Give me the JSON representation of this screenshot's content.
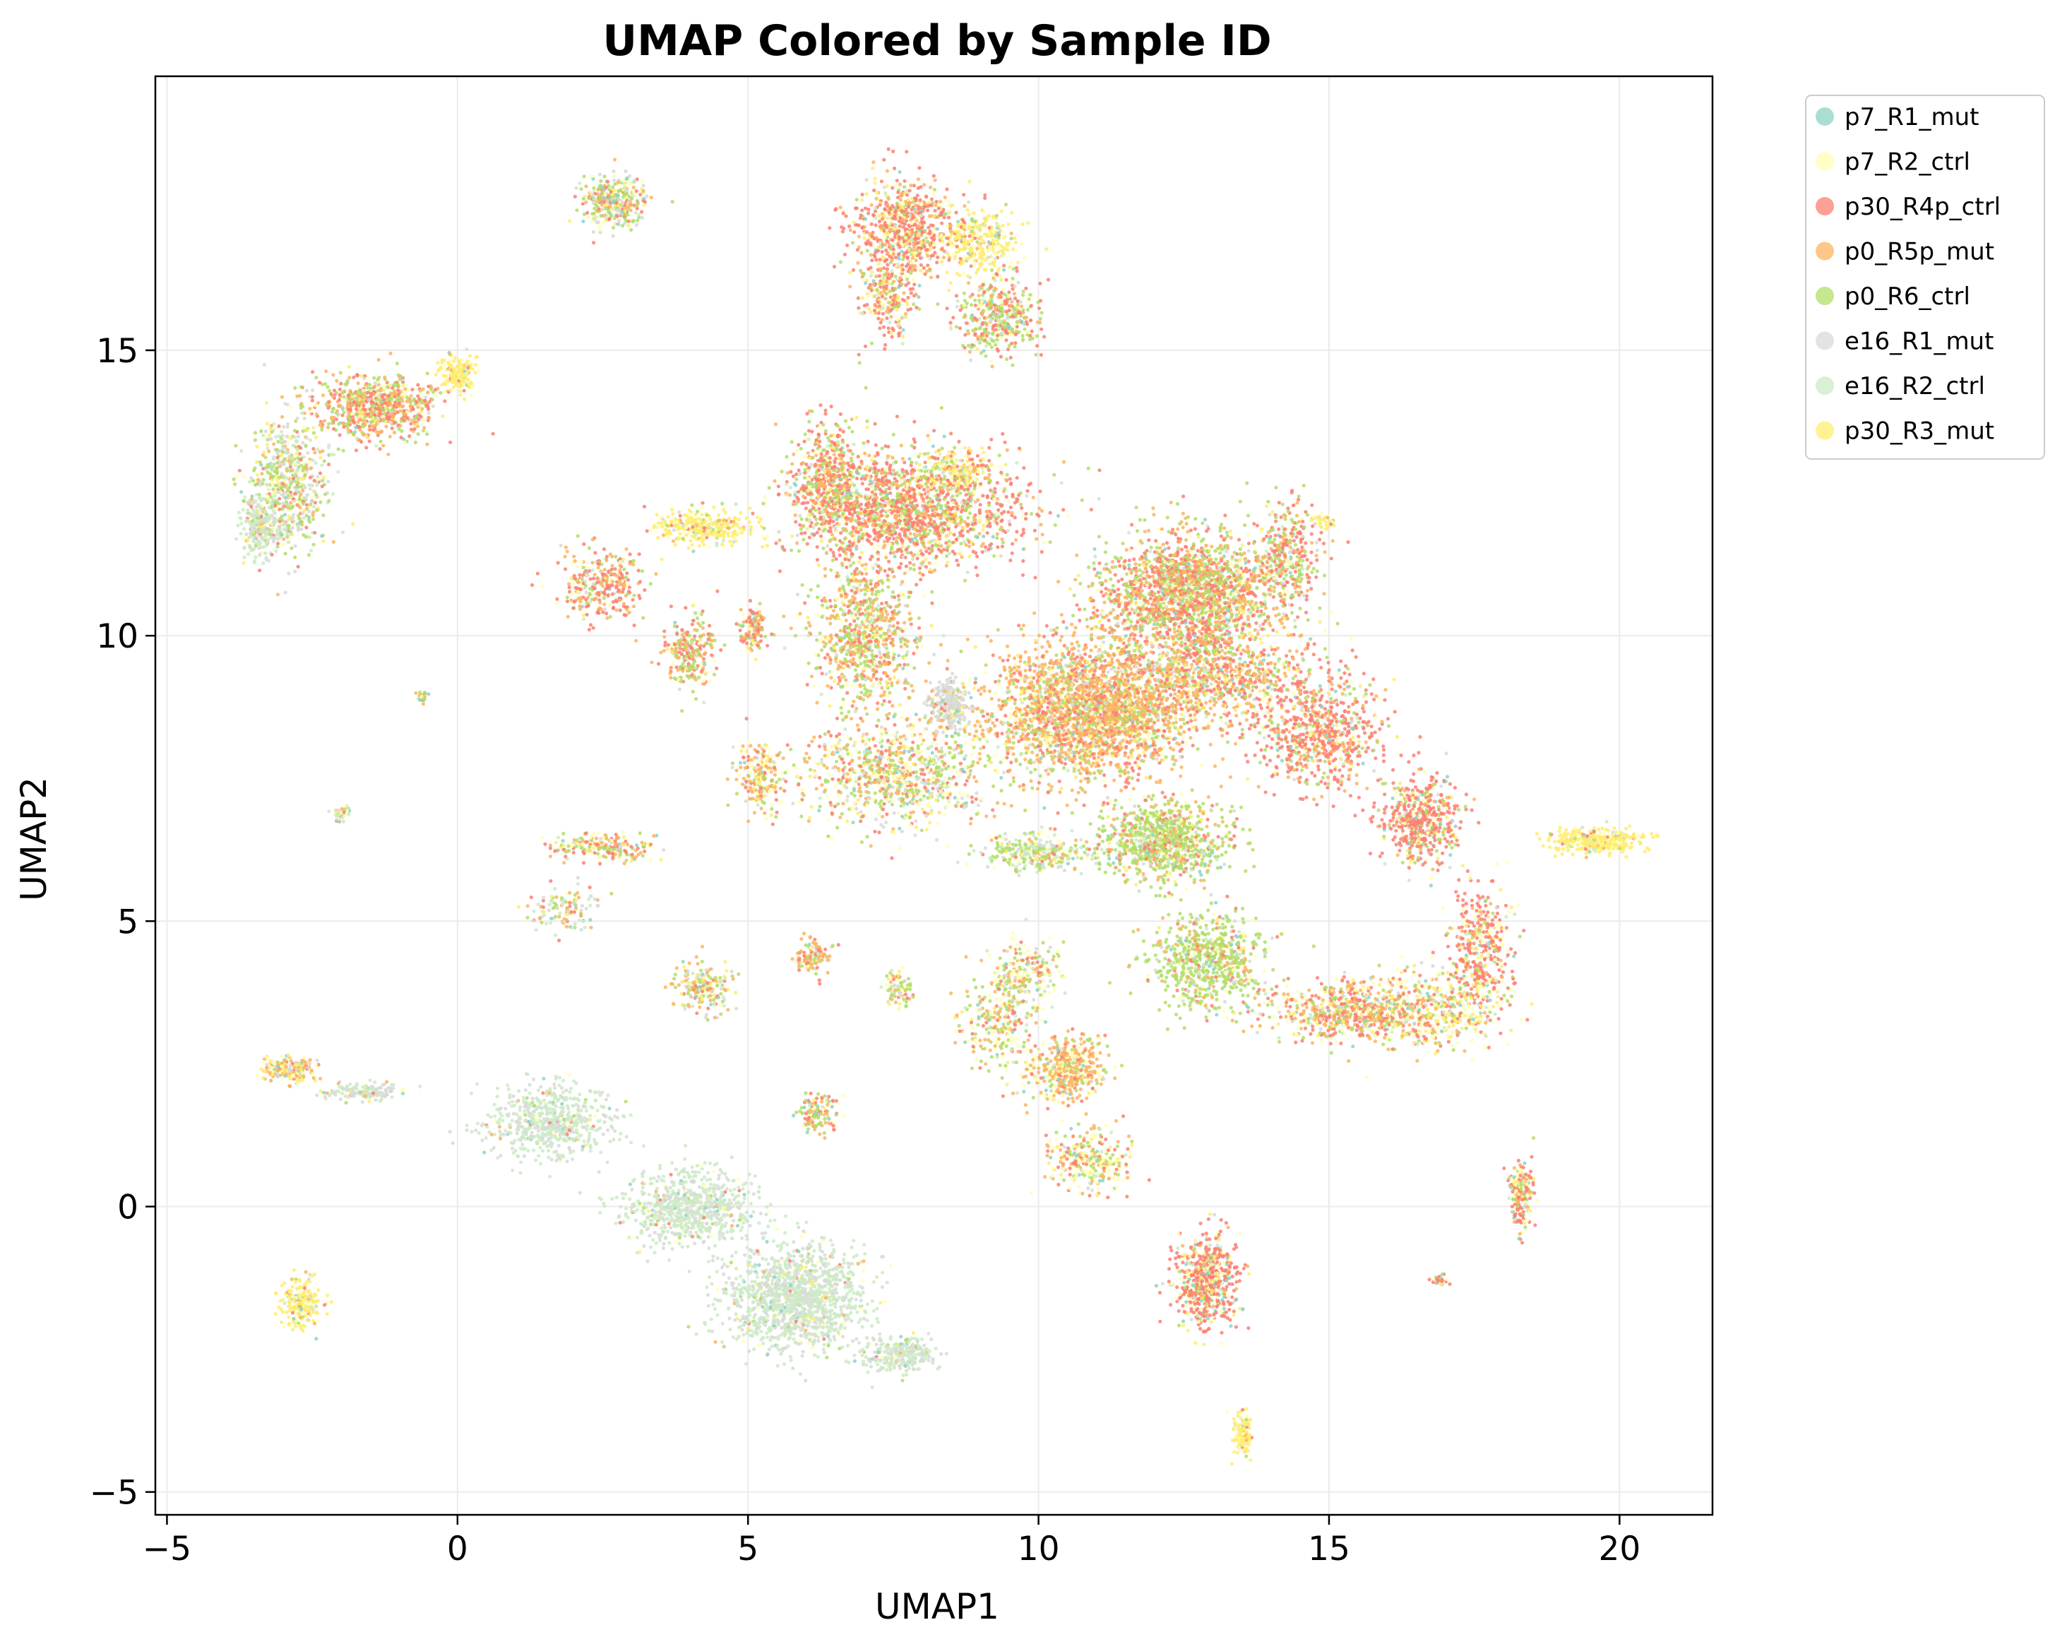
{
  "chart_data": {
    "type": "scatter",
    "title": "UMAP Colored by Sample ID",
    "xlabel": "UMAP1",
    "ylabel": "UMAP2",
    "xlim": [
      -5.2,
      21.6
    ],
    "ylim": [
      -5.4,
      19.8
    ],
    "xticks": [
      {
        "value": -5,
        "label": "−5"
      },
      {
        "value": 0,
        "label": "0"
      },
      {
        "value": 5,
        "label": "5"
      },
      {
        "value": 10,
        "label": "10"
      },
      {
        "value": 15,
        "label": "15"
      },
      {
        "value": 20,
        "label": "20"
      }
    ],
    "yticks": [
      {
        "value": -5,
        "label": "−5"
      },
      {
        "value": 0,
        "label": "0"
      },
      {
        "value": 5,
        "label": "5"
      },
      {
        "value": 10,
        "label": "10"
      },
      {
        "value": 15,
        "label": "15"
      }
    ],
    "grid": true,
    "legend_position": "outside upper right",
    "series": [
      {
        "name": "p7_R1_mut",
        "color": "#8dd3c7"
      },
      {
        "name": "p7_R2_ctrl",
        "color": "#ffffb3"
      },
      {
        "name": "p30_R4p_ctrl",
        "color": "#fb8072"
      },
      {
        "name": "p0_R5p_mut",
        "color": "#fdb462"
      },
      {
        "name": "p0_R6_ctrl",
        "color": "#b3de69"
      },
      {
        "name": "e16_R1_mut",
        "color": "#d9d9d9"
      },
      {
        "name": "e16_R2_ctrl",
        "color": "#ccebc5"
      },
      {
        "name": "p30_R3_mut",
        "color": "#ffed6f"
      }
    ],
    "clusters": [
      {
        "x": 10.9,
        "y": 8.7,
        "sx": 1.6,
        "sy": 1.1,
        "n": 2600,
        "w": [
          2,
          5,
          20,
          45,
          15,
          4,
          2,
          7
        ]
      },
      {
        "x": 12.6,
        "y": 10.8,
        "sx": 1.4,
        "sy": 0.9,
        "n": 1800,
        "w": [
          3,
          4,
          30,
          25,
          30,
          2,
          2,
          4
        ]
      },
      {
        "x": 14.8,
        "y": 8.3,
        "sx": 1.0,
        "sy": 0.9,
        "n": 700,
        "w": [
          2,
          4,
          55,
          20,
          10,
          2,
          2,
          5
        ]
      },
      {
        "x": 13.0,
        "y": 9.4,
        "sx": 1.5,
        "sy": 0.8,
        "n": 900,
        "w": [
          3,
          5,
          35,
          30,
          15,
          3,
          3,
          6
        ]
      },
      {
        "x": 7.8,
        "y": 12.2,
        "sx": 1.7,
        "sy": 0.9,
        "n": 1600,
        "w": [
          3,
          5,
          45,
          15,
          20,
          3,
          3,
          6
        ]
      },
      {
        "x": 6.4,
        "y": 12.7,
        "sx": 0.6,
        "sy": 0.9,
        "n": 500,
        "w": [
          3,
          5,
          40,
          15,
          25,
          3,
          3,
          6
        ]
      },
      {
        "x": 8.6,
        "y": 12.9,
        "sx": 0.6,
        "sy": 0.3,
        "n": 180,
        "w": [
          2,
          10,
          10,
          8,
          10,
          2,
          2,
          56
        ]
      },
      {
        "x": 7.0,
        "y": 10.0,
        "sx": 0.8,
        "sy": 1.1,
        "n": 800,
        "w": [
          3,
          8,
          20,
          30,
          28,
          3,
          3,
          5
        ]
      },
      {
        "x": 7.6,
        "y": 7.6,
        "sx": 1.4,
        "sy": 0.8,
        "n": 900,
        "w": [
          4,
          20,
          15,
          20,
          20,
          10,
          6,
          5
        ]
      },
      {
        "x": 8.5,
        "y": 8.8,
        "sx": 0.3,
        "sy": 0.4,
        "n": 260,
        "w": [
          2,
          4,
          3,
          5,
          6,
          70,
          6,
          4
        ]
      },
      {
        "x": 12.2,
        "y": 6.4,
        "sx": 0.9,
        "sy": 0.6,
        "n": 900,
        "w": [
          3,
          6,
          10,
          10,
          60,
          4,
          4,
          3
        ]
      },
      {
        "x": 12.9,
        "y": 4.3,
        "sx": 0.9,
        "sy": 0.8,
        "n": 700,
        "w": [
          3,
          6,
          8,
          8,
          65,
          4,
          4,
          2
        ]
      },
      {
        "x": 15.6,
        "y": 3.4,
        "sx": 1.4,
        "sy": 0.5,
        "n": 800,
        "w": [
          4,
          15,
          30,
          25,
          10,
          4,
          3,
          9
        ]
      },
      {
        "x": 16.6,
        "y": 6.8,
        "sx": 0.6,
        "sy": 0.7,
        "n": 500,
        "w": [
          3,
          6,
          60,
          10,
          10,
          3,
          3,
          5
        ]
      },
      {
        "x": 17.6,
        "y": 4.5,
        "sx": 0.5,
        "sy": 1.1,
        "n": 400,
        "w": [
          4,
          15,
          50,
          8,
          6,
          3,
          3,
          11
        ]
      },
      {
        "x": 19.6,
        "y": 6.4,
        "sx": 0.7,
        "sy": 0.2,
        "n": 320,
        "w": [
          2,
          12,
          3,
          3,
          2,
          2,
          2,
          74
        ]
      },
      {
        "x": 7.7,
        "y": 17.1,
        "sx": 0.8,
        "sy": 0.8,
        "n": 700,
        "w": [
          3,
          6,
          50,
          15,
          8,
          2,
          2,
          14
        ]
      },
      {
        "x": 9.0,
        "y": 16.9,
        "sx": 0.6,
        "sy": 0.5,
        "n": 280,
        "w": [
          2,
          15,
          6,
          5,
          6,
          2,
          2,
          62
        ]
      },
      {
        "x": 9.3,
        "y": 15.6,
        "sx": 0.6,
        "sy": 0.6,
        "n": 400,
        "w": [
          3,
          8,
          25,
          10,
          40,
          4,
          4,
          6
        ]
      },
      {
        "x": 7.4,
        "y": 15.9,
        "sx": 0.4,
        "sy": 0.6,
        "n": 200,
        "w": [
          3,
          6,
          45,
          15,
          10,
          3,
          3,
          15
        ]
      },
      {
        "x": 2.7,
        "y": 17.6,
        "sx": 0.5,
        "sy": 0.4,
        "n": 350,
        "w": [
          6,
          10,
          15,
          10,
          25,
          18,
          6,
          10
        ]
      },
      {
        "x": -1.4,
        "y": 14.0,
        "sx": 0.9,
        "sy": 0.5,
        "n": 700,
        "w": [
          3,
          6,
          35,
          25,
          20,
          3,
          3,
          5
        ]
      },
      {
        "x": -2.9,
        "y": 12.7,
        "sx": 0.6,
        "sy": 1.1,
        "n": 600,
        "w": [
          3,
          8,
          10,
          12,
          25,
          20,
          14,
          8
        ]
      },
      {
        "x": -3.4,
        "y": 11.9,
        "sx": 0.3,
        "sy": 0.5,
        "n": 260,
        "w": [
          3,
          5,
          3,
          3,
          5,
          25,
          53,
          3
        ]
      },
      {
        "x": 0.0,
        "y": 14.6,
        "sx": 0.3,
        "sy": 0.3,
        "n": 150,
        "w": [
          2,
          10,
          5,
          5,
          2,
          2,
          2,
          72
        ]
      },
      {
        "x": 4.2,
        "y": 11.9,
        "sx": 0.8,
        "sy": 0.3,
        "n": 300,
        "w": [
          2,
          10,
          5,
          5,
          4,
          3,
          3,
          68
        ]
      },
      {
        "x": 2.5,
        "y": 10.9,
        "sx": 0.6,
        "sy": 0.6,
        "n": 300,
        "w": [
          3,
          8,
          40,
          25,
          15,
          3,
          3,
          3
        ]
      },
      {
        "x": 4.0,
        "y": 9.7,
        "sx": 0.4,
        "sy": 0.6,
        "n": 250,
        "w": [
          3,
          8,
          30,
          20,
          30,
          3,
          3,
          3
        ]
      },
      {
        "x": 5.1,
        "y": 10.1,
        "sx": 0.2,
        "sy": 0.4,
        "n": 120,
        "w": [
          3,
          8,
          35,
          25,
          20,
          3,
          3,
          3
        ]
      },
      {
        "x": 2.5,
        "y": 6.3,
        "sx": 0.7,
        "sy": 0.2,
        "n": 200,
        "w": [
          3,
          8,
          25,
          20,
          30,
          3,
          3,
          8
        ]
      },
      {
        "x": 1.8,
        "y": 5.2,
        "sx": 0.5,
        "sy": 0.4,
        "n": 120,
        "w": [
          3,
          5,
          10,
          20,
          20,
          10,
          25,
          7
        ]
      },
      {
        "x": 4.2,
        "y": 3.8,
        "sx": 0.5,
        "sy": 0.4,
        "n": 180,
        "w": [
          3,
          8,
          10,
          25,
          20,
          10,
          6,
          18
        ]
      },
      {
        "x": 6.1,
        "y": 4.4,
        "sx": 0.3,
        "sy": 0.3,
        "n": 120,
        "w": [
          3,
          8,
          20,
          40,
          10,
          10,
          6,
          3
        ]
      },
      {
        "x": 7.6,
        "y": 3.8,
        "sx": 0.2,
        "sy": 0.3,
        "n": 80,
        "w": [
          3,
          15,
          10,
          20,
          30,
          10,
          6,
          6
        ]
      },
      {
        "x": 6.2,
        "y": 1.6,
        "sx": 0.3,
        "sy": 0.3,
        "n": 120,
        "w": [
          6,
          8,
          25,
          25,
          25,
          3,
          3,
          5
        ]
      },
      {
        "x": 9.3,
        "y": 3.2,
        "sx": 0.6,
        "sy": 0.8,
        "n": 250,
        "w": [
          4,
          20,
          15,
          25,
          25,
          3,
          3,
          5
        ]
      },
      {
        "x": 10.5,
        "y": 2.4,
        "sx": 0.6,
        "sy": 0.5,
        "n": 450,
        "w": [
          4,
          25,
          10,
          45,
          10,
          2,
          2,
          2
        ]
      },
      {
        "x": 10.9,
        "y": 0.8,
        "sx": 0.6,
        "sy": 0.5,
        "n": 300,
        "w": [
          5,
          30,
          15,
          15,
          20,
          2,
          5,
          8
        ]
      },
      {
        "x": 12.9,
        "y": -1.3,
        "sx": 0.5,
        "sy": 0.7,
        "n": 600,
        "w": [
          5,
          15,
          55,
          5,
          5,
          3,
          3,
          9
        ]
      },
      {
        "x": 13.5,
        "y": -4.0,
        "sx": 0.15,
        "sy": 0.3,
        "n": 140,
        "w": [
          2,
          15,
          3,
          3,
          2,
          2,
          2,
          71
        ]
      },
      {
        "x": 18.3,
        "y": 0.2,
        "sx": 0.2,
        "sy": 0.5,
        "n": 200,
        "w": [
          3,
          20,
          45,
          10,
          10,
          3,
          3,
          6
        ]
      },
      {
        "x": -2.9,
        "y": 2.4,
        "sx": 0.4,
        "sy": 0.2,
        "n": 200,
        "w": [
          3,
          10,
          5,
          35,
          5,
          15,
          7,
          20
        ]
      },
      {
        "x": -1.6,
        "y": 2.0,
        "sx": 0.6,
        "sy": 0.15,
        "n": 150,
        "w": [
          2,
          3,
          2,
          3,
          3,
          45,
          40,
          2
        ]
      },
      {
        "x": -2.7,
        "y": -1.7,
        "sx": 0.3,
        "sy": 0.4,
        "n": 200,
        "w": [
          3,
          10,
          5,
          8,
          5,
          3,
          3,
          63
        ]
      },
      {
        "x": 1.6,
        "y": 1.5,
        "sx": 1.0,
        "sy": 0.6,
        "n": 600,
        "w": [
          2,
          3,
          1,
          1,
          2,
          25,
          64,
          2
        ]
      },
      {
        "x": 4.0,
        "y": 0.0,
        "sx": 1.0,
        "sy": 0.6,
        "n": 700,
        "w": [
          2,
          3,
          1,
          1,
          2,
          25,
          64,
          2
        ]
      },
      {
        "x": 5.8,
        "y": -1.6,
        "sx": 1.1,
        "sy": 0.8,
        "n": 1300,
        "w": [
          2,
          3,
          1,
          1,
          2,
          28,
          61,
          2
        ]
      },
      {
        "x": 7.6,
        "y": -2.6,
        "sx": 0.6,
        "sy": 0.3,
        "n": 250,
        "w": [
          2,
          3,
          1,
          1,
          2,
          30,
          59,
          2
        ]
      },
      {
        "x": -0.6,
        "y": 8.9,
        "sx": 0.08,
        "sy": 0.1,
        "n": 25,
        "w": [
          5,
          10,
          10,
          30,
          40,
          2,
          2,
          1
        ]
      },
      {
        "x": -2.0,
        "y": 6.9,
        "sx": 0.15,
        "sy": 0.15,
        "n": 40,
        "w": [
          10,
          20,
          10,
          10,
          10,
          10,
          20,
          10
        ]
      },
      {
        "x": 16.9,
        "y": -1.3,
        "sx": 0.12,
        "sy": 0.08,
        "n": 30,
        "w": [
          10,
          10,
          60,
          5,
          5,
          2,
          2,
          6
        ]
      },
      {
        "x": 14.9,
        "y": 12.0,
        "sx": 0.2,
        "sy": 0.1,
        "n": 40,
        "w": [
          2,
          20,
          3,
          3,
          3,
          2,
          2,
          65
        ]
      },
      {
        "x": 14.3,
        "y": 11.4,
        "sx": 0.5,
        "sy": 0.9,
        "n": 300,
        "w": [
          3,
          5,
          40,
          15,
          30,
          3,
          2,
          2
        ]
      },
      {
        "x": 9.8,
        "y": 4.1,
        "sx": 0.5,
        "sy": 0.5,
        "n": 200,
        "w": [
          3,
          30,
          10,
          15,
          25,
          10,
          4,
          3
        ]
      },
      {
        "x": 5.2,
        "y": 7.5,
        "sx": 0.4,
        "sy": 0.6,
        "n": 200,
        "w": [
          3,
          20,
          20,
          30,
          10,
          3,
          4,
          10
        ]
      },
      {
        "x": 10.0,
        "y": 6.2,
        "sx": 1.0,
        "sy": 0.3,
        "n": 300,
        "w": [
          3,
          10,
          5,
          5,
          35,
          12,
          27,
          3
        ]
      },
      {
        "x": 17.0,
        "y": 3.5,
        "sx": 0.9,
        "sy": 0.7,
        "n": 300,
        "w": [
          5,
          30,
          15,
          10,
          10,
          3,
          3,
          24
        ]
      }
    ]
  }
}
